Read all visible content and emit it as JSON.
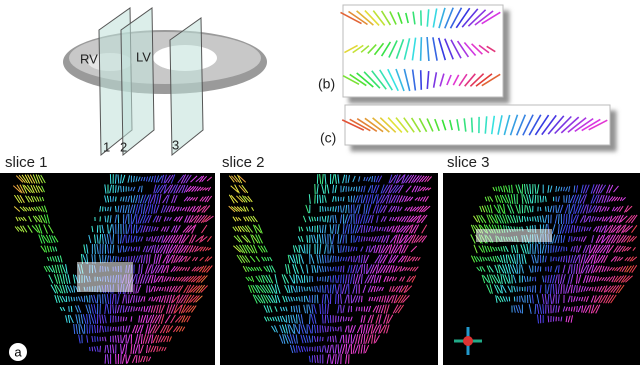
{
  "heart": {
    "labels": [
      "RV",
      "LV"
    ],
    "planes": [
      "1",
      "2",
      "3"
    ]
  },
  "insets": {
    "b": "(b)",
    "c": "(c)"
  },
  "panels": [
    {
      "title": "slice 1",
      "label": "a"
    },
    {
      "title": "slice 2"
    },
    {
      "title": "slice 3"
    }
  ]
}
